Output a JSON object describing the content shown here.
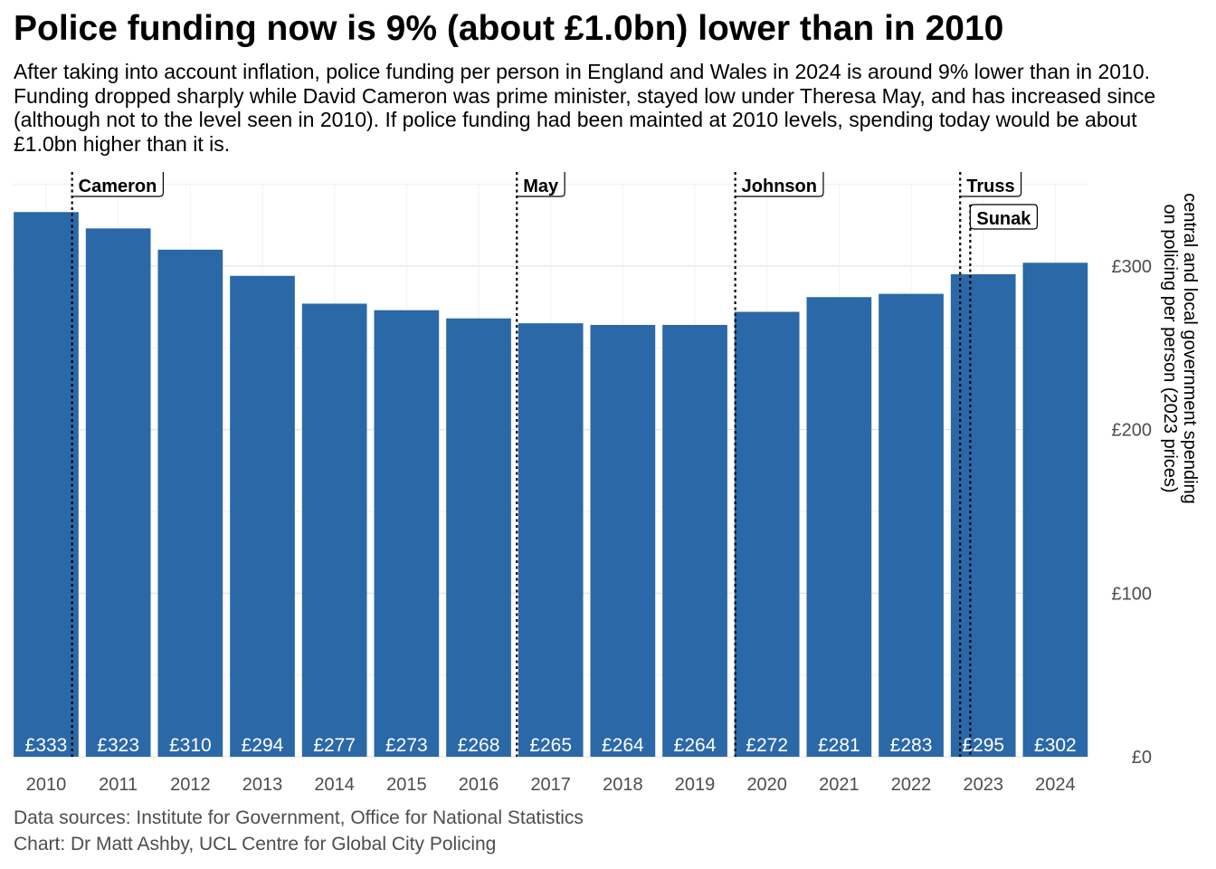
{
  "title": "Police funding now is 9% (about £1.0bn) lower than in 2010",
  "subtitle": "After taking into account inflation, police funding per person in England and Wales in 2024 is around 9% lower than in 2010. Funding dropped sharply while David Cameron was prime minister, stayed low under Theresa May, and has increased since (although not to the level seen in 2010). If police funding had been mainted at 2010 levels, spending today would be about £1.0bn higher than it is.",
  "caption": {
    "line1": "Data sources: Institute for Government, Office for National Statistics",
    "line2": "Chart: Dr Matt Ashby, UCL Centre for Global City Policing"
  },
  "colors": {
    "bar": "#2b68a8",
    "bar_label": "#ffffff",
    "grid_major": "#e5e5e5",
    "grid_minor": "#f2f2f2",
    "axis_text": "#4d4d4d"
  },
  "chart_data": {
    "type": "bar",
    "categories": [
      "2010",
      "2011",
      "2012",
      "2013",
      "2014",
      "2015",
      "2016",
      "2017",
      "2018",
      "2019",
      "2020",
      "2021",
      "2022",
      "2023",
      "2024"
    ],
    "values": [
      333,
      323,
      310,
      294,
      277,
      273,
      268,
      265,
      264,
      264,
      272,
      281,
      283,
      295,
      302
    ],
    "data_labels": [
      "£333",
      "£323",
      "£310",
      "£294",
      "£277",
      "£273",
      "£268",
      "£265",
      "£264",
      "£264",
      "£272",
      "£281",
      "£283",
      "£295",
      "£302"
    ],
    "ylabel_line1": "central and local government spending",
    "ylabel_line2": "on policing per person (2023 prices)",
    "ylim": [
      0,
      345
    ],
    "yticks": [
      0,
      100,
      200,
      300
    ],
    "ytick_labels": [
      "£0",
      "£100",
      "£200",
      "£300"
    ],
    "y_axis_position": "right",
    "grid": true,
    "annotations": [
      {
        "label": "Cameron",
        "x": 2010.36
      },
      {
        "label": "May",
        "x": 2016.53
      },
      {
        "label": "Johnson",
        "x": 2019.56
      },
      {
        "label": "Truss",
        "x": 2022.68
      },
      {
        "label": "Sunak",
        "x": 2022.82
      }
    ]
  }
}
